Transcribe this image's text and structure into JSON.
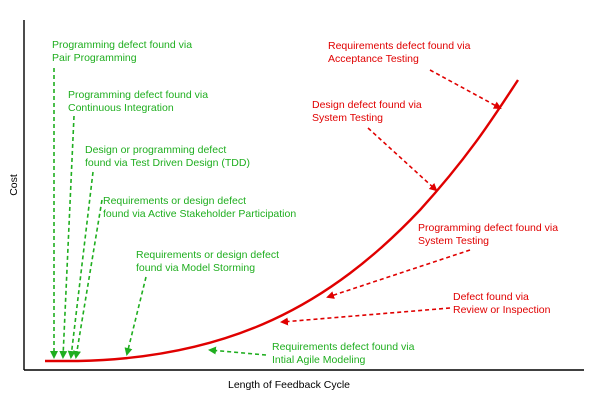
{
  "axes": {
    "xlabel": "Length of Feedback Cycle",
    "ylabel": "Cost"
  },
  "colors": {
    "agile": "#1fae1f",
    "traditional": "#e00000",
    "axis": "#000000"
  },
  "green_labels": [
    {
      "line1": "Programming defect found via",
      "line2": "Pair Programming"
    },
    {
      "line1": "Programming defect found via",
      "line2": "Continuous Integration"
    },
    {
      "line1": "Design or programming defect",
      "line2": "found via Test Driven Design (TDD)"
    },
    {
      "line1": "Requirements or design defect",
      "line2": "found via Active Stakeholder Participation"
    },
    {
      "line1": "Requirements or design defect",
      "line2": "found via Model Storming"
    },
    {
      "line1": "Requirements  defect found via",
      "line2": "Intial Agile Modeling"
    }
  ],
  "red_labels": [
    {
      "line1": "Requirements  defect found via",
      "line2": "Acceptance Testing"
    },
    {
      "line1": "Design  defect found via",
      "line2": "System Testing"
    },
    {
      "line1": "Programming defect found via",
      "line2": "System Testing"
    },
    {
      "line1": "Defect found via",
      "line2": "Review or Inspection"
    }
  ]
}
